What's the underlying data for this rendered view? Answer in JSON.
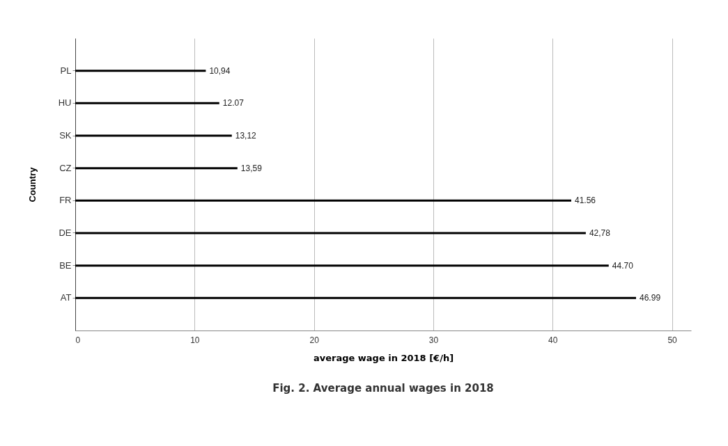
{
  "chart_data": {
    "type": "bar",
    "orientation": "horizontal",
    "title": "Fig. 2. Average annual wages in 2018",
    "xlabel": "average wage in 2018   [€/h]",
    "ylabel": "Country",
    "categories": [
      "PL",
      "HU",
      "SK",
      "CZ",
      "FR",
      "DE",
      "BE",
      "AT"
    ],
    "values": [
      10.94,
      12.07,
      13.12,
      13.59,
      41.56,
      42.78,
      44.7,
      46.99
    ],
    "value_labels": [
      "10,94",
      "12.07",
      "13,12",
      "13,59",
      "41.56",
      "42,78",
      "44.70",
      "46.99"
    ],
    "color": "#000000",
    "xlim": [
      0,
      51.6
    ],
    "xticks": [
      0,
      10,
      20,
      30,
      40,
      50
    ],
    "grid": "x"
  }
}
